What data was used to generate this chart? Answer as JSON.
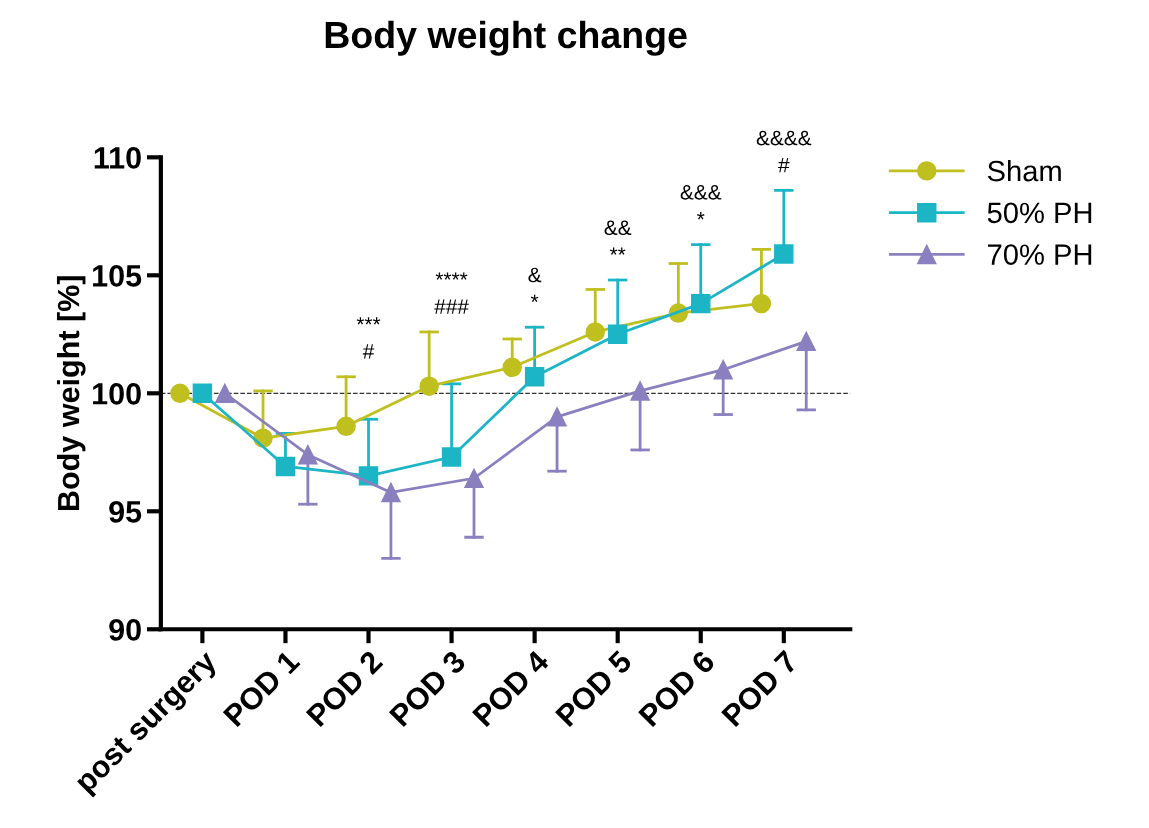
{
  "chart_data": {
    "type": "line",
    "title": "Body weight change",
    "ylabel": "Body weight [%]",
    "categories": [
      "post surgery",
      "POD 1",
      "POD 2",
      "POD 3",
      "POD 4",
      "POD 5",
      "POD 6",
      "POD 7"
    ],
    "series": [
      {
        "name": "Sham",
        "color": "#bfbf1f",
        "marker": "circle",
        "values": [
          100,
          98.1,
          98.6,
          100.3,
          101.1,
          102.6,
          103.4,
          103.8
        ],
        "errors": [
          null,
          [
            98.1,
            100.1
          ],
          [
            98.6,
            100.7
          ],
          [
            100.3,
            102.6
          ],
          [
            101.1,
            102.3
          ],
          [
            102.6,
            104.4
          ],
          [
            103.4,
            105.5
          ],
          [
            103.8,
            106.1
          ]
        ]
      },
      {
        "name": "50% PH",
        "color": "#1bb5c6",
        "marker": "square",
        "values": [
          100,
          96.9,
          96.5,
          97.3,
          100.7,
          102.5,
          103.8,
          105.9
        ],
        "errors": [
          null,
          [
            96.9,
            98.3
          ],
          [
            96.5,
            98.9
          ],
          [
            97.3,
            100.4
          ],
          [
            100.7,
            102.8
          ],
          [
            102.5,
            104.8
          ],
          [
            103.8,
            106.3
          ],
          [
            105.9,
            108.6
          ]
        ]
      },
      {
        "name": "70% PH",
        "color": "#8a80c0",
        "marker": "triangle",
        "values": [
          100,
          97.4,
          95.8,
          96.4,
          99.0,
          100.1,
          101.0,
          102.2
        ],
        "errors": [
          null,
          [
            95.3,
            97.4
          ],
          [
            93.0,
            95.8
          ],
          [
            93.9,
            96.4
          ],
          [
            96.7,
            99.0
          ],
          [
            97.6,
            100.1
          ],
          [
            99.1,
            101.0
          ],
          [
            99.3,
            102.2
          ]
        ]
      }
    ],
    "ylim": [
      90,
      110
    ],
    "yticks": [
      90,
      95,
      100,
      105,
      110
    ],
    "ref_lines": [
      {
        "axis": "y",
        "value": 100,
        "color": "#333333",
        "line_style": "dashed"
      }
    ],
    "annotations": [
      "***\n#",
      "****\n###",
      "&\n*",
      "&&\n**",
      "&&&\n*",
      "&&&&\n#"
    ],
    "legend": "top right",
    "grid": false,
    "line_style": "solid"
  }
}
